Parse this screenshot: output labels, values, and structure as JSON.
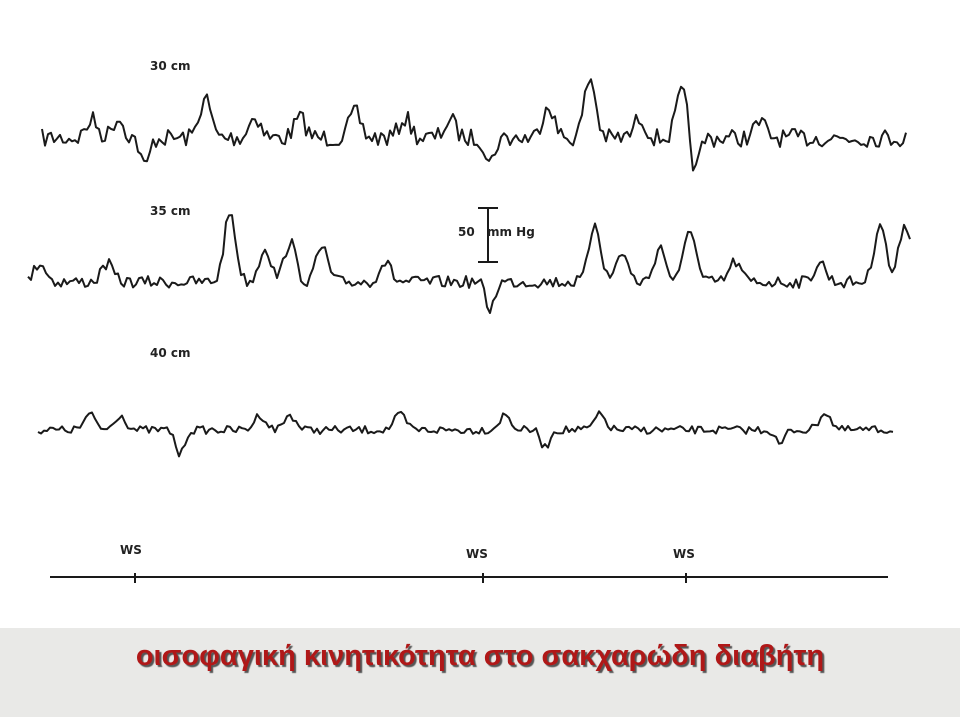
{
  "tracings": [
    {
      "label": "30 cm"
    },
    {
      "label": "35 cm"
    },
    {
      "label": "40 cm"
    }
  ],
  "scale": {
    "value": "50",
    "unit": "mm Hg"
  },
  "swallow_markers": [
    "WS",
    "WS",
    "WS"
  ],
  "caption": "οισοφαγική κινητικότητα στο σακχαρώδη διαβήτη"
}
